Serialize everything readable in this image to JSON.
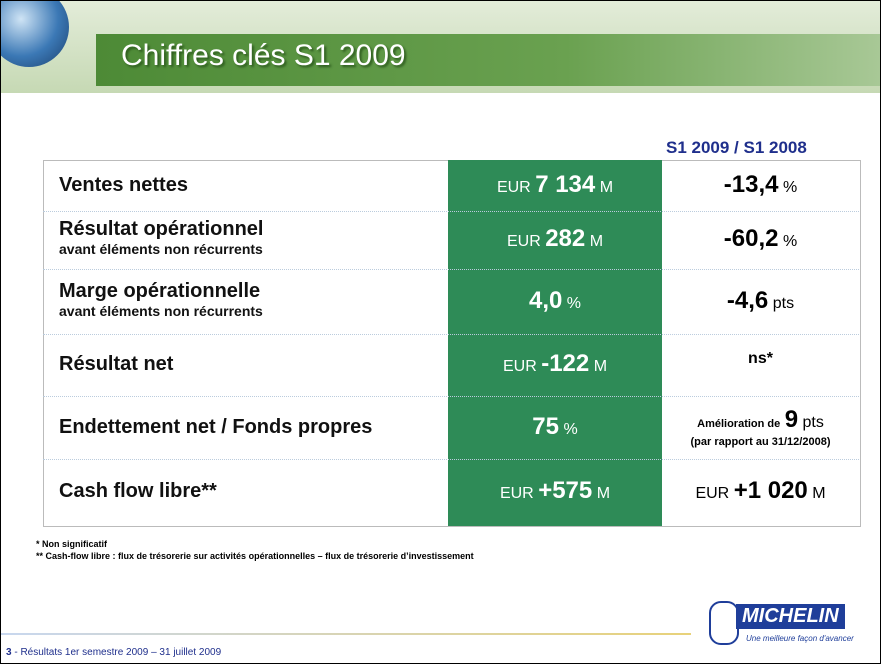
{
  "header": {
    "title": "Chiffres clés S1 2009"
  },
  "table": {
    "comparison_header": "S1 2009 / S1 2008",
    "rows": [
      {
        "label": "Ventes nettes",
        "value": {
          "prefix": "EUR",
          "number": "7 134",
          "suffix": "M"
        },
        "change": {
          "number": "-13,4",
          "suffix": "%"
        }
      },
      {
        "label": "Résultat opérationnel",
        "sublabel": "avant éléments non récurrents",
        "value": {
          "prefix": "EUR",
          "number": "282",
          "suffix": "M"
        },
        "change": {
          "number": "-60,2",
          "suffix": "%"
        }
      },
      {
        "label": "Marge opérationnelle",
        "sublabel": "avant éléments non récurrents",
        "value": {
          "number": "4,0",
          "suffix": "%"
        },
        "change": {
          "number": "-4,6",
          "suffix": "pts"
        }
      },
      {
        "label": "Résultat net",
        "value": {
          "prefix": "EUR",
          "number": "-122",
          "suffix": "M"
        },
        "change": {
          "text": "ns*"
        }
      },
      {
        "label": "Endettement net / Fonds propres",
        "value": {
          "number": "75",
          "suffix": "%"
        },
        "change": {
          "prefix": "Amélioration de",
          "number": "9",
          "suffix": "pts",
          "note": "(par rapport au 31/12/2008)"
        }
      },
      {
        "label": "Cash flow libre**",
        "value": {
          "prefix": "EUR",
          "number": "+575",
          "suffix": "M"
        },
        "change": {
          "prefix": "EUR",
          "number": "+1 020",
          "suffix": "M"
        }
      }
    ]
  },
  "footnotes": [
    "* Non significatif",
    "** Cash-flow libre : flux de trésorerie sur activités opérationnelles – flux de trésorerie d’investissement"
  ],
  "footer": {
    "page": "3",
    "text": "- Résultats 1er semestre 2009 – 31 juillet 2009"
  },
  "logo": {
    "brand": "MICHELIN",
    "tagline": "Une meilleure façon d'avancer"
  }
}
